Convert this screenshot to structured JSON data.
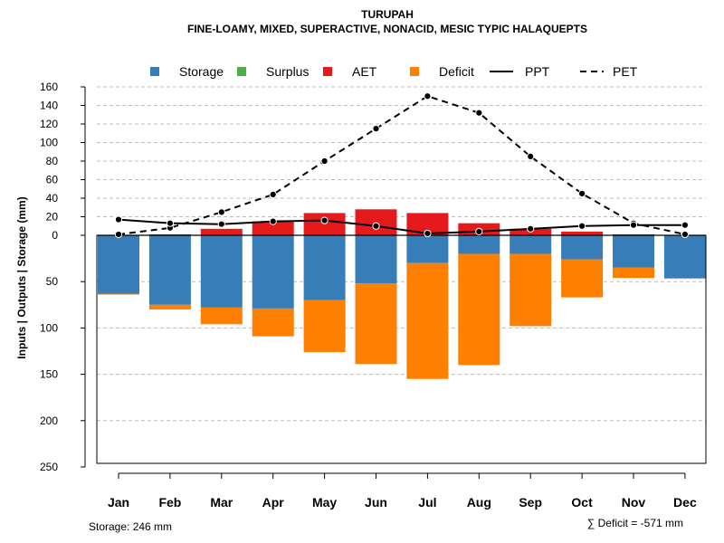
{
  "chart_data": {
    "type": "bar",
    "title": "TURUPAH",
    "subtitle": "FINE-LOAMY, MIXED, SUPERACTIVE, NONACID, MESIC TYPIC HALAQUEPTS",
    "ylabel": "Inputs | Outputs | Storage    (mm)",
    "categories": [
      "Jan",
      "Feb",
      "Mar",
      "Apr",
      "May",
      "Jun",
      "Jul",
      "Aug",
      "Sep",
      "Oct",
      "Nov",
      "Dec"
    ],
    "upper_axis": {
      "range": [
        0,
        160
      ],
      "ticks": [
        0,
        20,
        40,
        60,
        80,
        100,
        120,
        140,
        160
      ]
    },
    "lower_axis": {
      "range": [
        0,
        250
      ],
      "ticks": [
        0,
        50,
        100,
        150,
        200,
        250
      ]
    },
    "series": [
      {
        "name": "Storage",
        "color": "#377EB8",
        "values": [
          63,
          75,
          78,
          79,
          70,
          52,
          30,
          20,
          20,
          26,
          35,
          46
        ]
      },
      {
        "name": "Surplus",
        "color": "#4DAF4A",
        "values": [
          0,
          0,
          0,
          0,
          0,
          0,
          0,
          0,
          0,
          0,
          0,
          0
        ]
      },
      {
        "name": "AET",
        "color": "#E41A1C",
        "values": [
          0,
          1,
          7,
          15,
          24,
          28,
          24,
          13,
          7,
          4,
          1,
          0
        ]
      },
      {
        "name": "Deficit",
        "color": "#FF7F00",
        "values": [
          1,
          5,
          18,
          30,
          56,
          87,
          125,
          120,
          78,
          41,
          11,
          1
        ]
      },
      {
        "name": "PPT",
        "color": "#000000",
        "line": "solid",
        "values": [
          17,
          13,
          12,
          15,
          16,
          10,
          2,
          4,
          7,
          10,
          11,
          11
        ]
      },
      {
        "name": "PET",
        "color": "#000000",
        "line": "dashed",
        "values": [
          1,
          8,
          25,
          44,
          80,
          115,
          150,
          132,
          85,
          45,
          13,
          1
        ]
      }
    ],
    "legend_position": "top",
    "grid": true
  },
  "footer": {
    "storage_label": "Storage: 246 mm",
    "deficit_label": "∑ Deficit = -571 mm"
  }
}
